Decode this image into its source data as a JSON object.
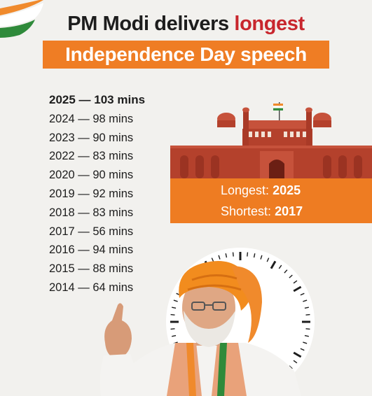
{
  "headline": {
    "text": "PM Modi delivers ",
    "accent": "longest",
    "subtitle": "Independence Day speech"
  },
  "speech_durations": [
    {
      "label": "2025 — 103 mins"
    },
    {
      "label": "2024 — 98 mins"
    },
    {
      "label": "2023 — 90 mins"
    },
    {
      "label": "2022 — 83 mins"
    },
    {
      "label": "2020 — 90 mins"
    },
    {
      "label": "2019 — 92 mins"
    },
    {
      "label": "2018 — 83 mins"
    },
    {
      "label": "2017 — 56 mins"
    },
    {
      "label": "2016 — 94 mins"
    },
    {
      "label": "2015 — 88 mins"
    },
    {
      "label": "2014 — 64 mins"
    }
  ],
  "stats": {
    "longest_label": "Longest:",
    "longest_value": "2025",
    "shortest_label": "Shortest:",
    "shortest_value": "2017"
  },
  "colors": {
    "accent_orange": "#ef7d24",
    "accent_red": "#c8262d",
    "fort_red": "#b4412c",
    "background": "#f2f1ee"
  },
  "icons": {
    "flag": "tricolor-swoosh-icon",
    "fort": "red-fort-illustration",
    "clock": "clock-dial-icon"
  }
}
